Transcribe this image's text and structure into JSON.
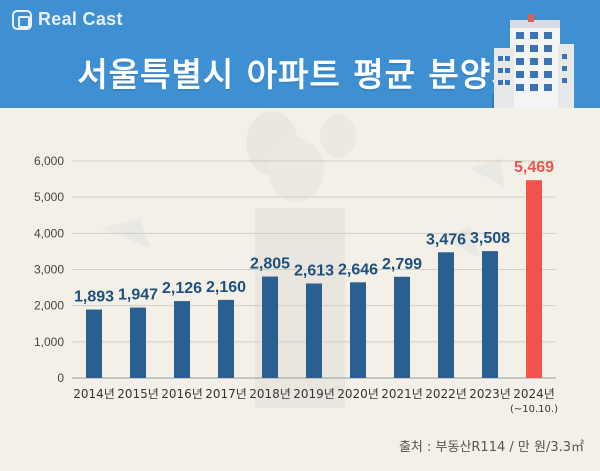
{
  "header": {
    "logo_text": "Real Cast",
    "title": "서울특별시 아파트 평균 분양가"
  },
  "source_note": "출처 : 부동산R114 / 만 원/3.3㎡",
  "colors": {
    "header_bg": "#3f8fd3",
    "bar_default": "#2b5f90",
    "bar_highlight": "#f0544f",
    "background": "#f3f1e7"
  },
  "chart_data": {
    "type": "bar",
    "categories": [
      "2014년",
      "2015년",
      "2016년",
      "2017년",
      "2018년",
      "2019년",
      "2020년",
      "2021년",
      "2022년",
      "2023년",
      "2024년"
    ],
    "category_notes": [
      "",
      "",
      "",
      "",
      "",
      "",
      "",
      "",
      "",
      "",
      "(~10.10.)"
    ],
    "values": [
      1893,
      1947,
      2126,
      2160,
      2805,
      2613,
      2646,
      2799,
      3476,
      3508,
      5469
    ],
    "value_labels": [
      "1,893",
      "1,947",
      "2,126",
      "2,160",
      "2,805",
      "2,613",
      "2,646",
      "2,799",
      "3,476",
      "3,508",
      "5,469"
    ],
    "highlight_index": 10,
    "y_ticks": [
      0,
      1000,
      2000,
      3000,
      4000,
      5000,
      6000
    ],
    "y_tick_labels": [
      "0",
      "1,000",
      "2,000",
      "3,000",
      "4,000",
      "5,000",
      "6,000"
    ],
    "ylim": [
      0,
      6000
    ],
    "grid": true,
    "title": "서울특별시 아파트 평균 분양가",
    "xlabel": "",
    "ylabel": ""
  }
}
